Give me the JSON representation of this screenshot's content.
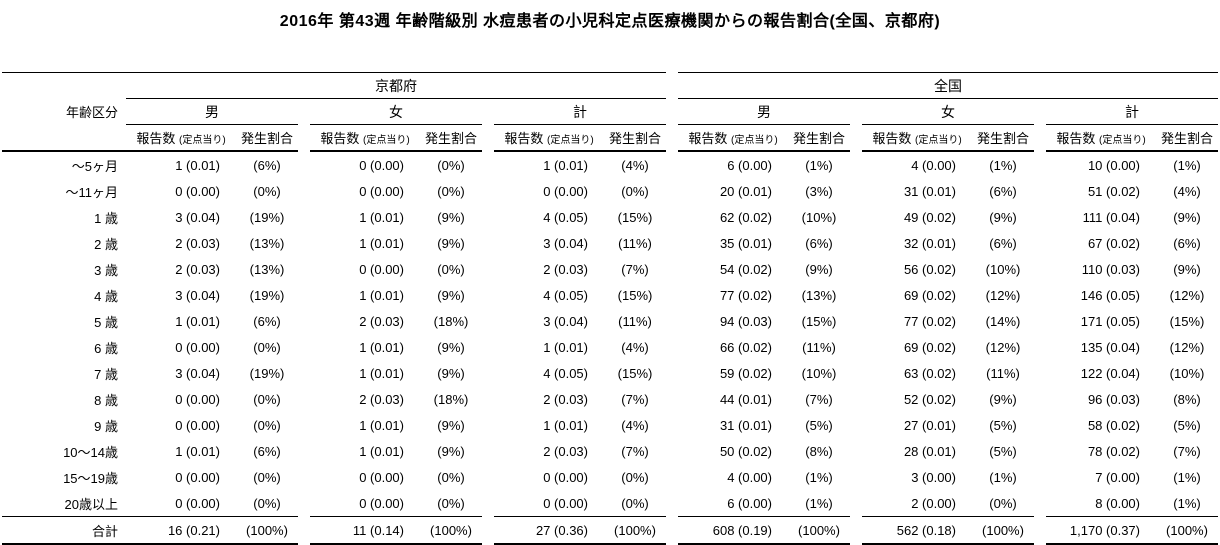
{
  "title": "2016年 第43週 年齢階級別 水痘患者の小児科定点医療機関からの報告割合(全国、京都府)",
  "table": {
    "age_header": "年齢区分",
    "col_count_label": "報告数",
    "col_count_note": "(定点当り)",
    "col_rate_label": "発生割合",
    "sections": [
      {
        "label": "京都府",
        "genders": [
          "男",
          "女",
          "計"
        ]
      },
      {
        "label": "全国",
        "genders": [
          "男",
          "女",
          "計"
        ]
      }
    ],
    "rows": [
      {
        "age": "～5ヶ月",
        "values": [
          "1 (0.01)",
          "(6%)",
          "0 (0.00)",
          "(0%)",
          "1 (0.01)",
          "(4%)",
          "6 (0.00)",
          "(1%)",
          "4 (0.00)",
          "(1%)",
          "10 (0.00)",
          "(1%)"
        ]
      },
      {
        "age": "～11ヶ月",
        "values": [
          "0 (0.00)",
          "(0%)",
          "0 (0.00)",
          "(0%)",
          "0 (0.00)",
          "(0%)",
          "20 (0.01)",
          "(3%)",
          "31 (0.01)",
          "(6%)",
          "51 (0.02)",
          "(4%)"
        ]
      },
      {
        "age": "1 歳",
        "values": [
          "3 (0.04)",
          "(19%)",
          "1 (0.01)",
          "(9%)",
          "4 (0.05)",
          "(15%)",
          "62 (0.02)",
          "(10%)",
          "49 (0.02)",
          "(9%)",
          "111 (0.04)",
          "(9%)"
        ]
      },
      {
        "age": "2 歳",
        "values": [
          "2 (0.03)",
          "(13%)",
          "1 (0.01)",
          "(9%)",
          "3 (0.04)",
          "(11%)",
          "35 (0.01)",
          "(6%)",
          "32 (0.01)",
          "(6%)",
          "67 (0.02)",
          "(6%)"
        ]
      },
      {
        "age": "3 歳",
        "values": [
          "2 (0.03)",
          "(13%)",
          "0 (0.00)",
          "(0%)",
          "2 (0.03)",
          "(7%)",
          "54 (0.02)",
          "(9%)",
          "56 (0.02)",
          "(10%)",
          "110 (0.03)",
          "(9%)"
        ]
      },
      {
        "age": "4 歳",
        "values": [
          "3 (0.04)",
          "(19%)",
          "1 (0.01)",
          "(9%)",
          "4 (0.05)",
          "(15%)",
          "77 (0.02)",
          "(13%)",
          "69 (0.02)",
          "(12%)",
          "146 (0.05)",
          "(12%)"
        ]
      },
      {
        "age": "5 歳",
        "values": [
          "1 (0.01)",
          "(6%)",
          "2 (0.03)",
          "(18%)",
          "3 (0.04)",
          "(11%)",
          "94 (0.03)",
          "(15%)",
          "77 (0.02)",
          "(14%)",
          "171 (0.05)",
          "(15%)"
        ]
      },
      {
        "age": "6 歳",
        "values": [
          "0 (0.00)",
          "(0%)",
          "1 (0.01)",
          "(9%)",
          "1 (0.01)",
          "(4%)",
          "66 (0.02)",
          "(11%)",
          "69 (0.02)",
          "(12%)",
          "135 (0.04)",
          "(12%)"
        ]
      },
      {
        "age": "7 歳",
        "values": [
          "3 (0.04)",
          "(19%)",
          "1 (0.01)",
          "(9%)",
          "4 (0.05)",
          "(15%)",
          "59 (0.02)",
          "(10%)",
          "63 (0.02)",
          "(11%)",
          "122 (0.04)",
          "(10%)"
        ]
      },
      {
        "age": "8 歳",
        "values": [
          "0 (0.00)",
          "(0%)",
          "2 (0.03)",
          "(18%)",
          "2 (0.03)",
          "(7%)",
          "44 (0.01)",
          "(7%)",
          "52 (0.02)",
          "(9%)",
          "96 (0.03)",
          "(8%)"
        ]
      },
      {
        "age": "9 歳",
        "values": [
          "0 (0.00)",
          "(0%)",
          "1 (0.01)",
          "(9%)",
          "1 (0.01)",
          "(4%)",
          "31 (0.01)",
          "(5%)",
          "27 (0.01)",
          "(5%)",
          "58 (0.02)",
          "(5%)"
        ]
      },
      {
        "age": "10～14歳",
        "values": [
          "1 (0.01)",
          "(6%)",
          "1 (0.01)",
          "(9%)",
          "2 (0.03)",
          "(7%)",
          "50 (0.02)",
          "(8%)",
          "28 (0.01)",
          "(5%)",
          "78 (0.02)",
          "(7%)"
        ]
      },
      {
        "age": "15～19歳",
        "values": [
          "0 (0.00)",
          "(0%)",
          "0 (0.00)",
          "(0%)",
          "0 (0.00)",
          "(0%)",
          "4 (0.00)",
          "(1%)",
          "3 (0.00)",
          "(1%)",
          "7 (0.00)",
          "(1%)"
        ]
      },
      {
        "age": "20歳以上",
        "values": [
          "0 (0.00)",
          "(0%)",
          "0 (0.00)",
          "(0%)",
          "0 (0.00)",
          "(0%)",
          "6 (0.00)",
          "(1%)",
          "2 (0.00)",
          "(0%)",
          "8 (0.00)",
          "(1%)"
        ]
      }
    ],
    "total": {
      "age": "合計",
      "values": [
        "16 (0.21)",
        "(100%)",
        "11 (0.14)",
        "(100%)",
        "27 (0.36)",
        "(100%)",
        "608 (0.19)",
        "(100%)",
        "562 (0.18)",
        "(100%)",
        "1,170 (0.37)",
        "(100%)"
      ]
    }
  }
}
